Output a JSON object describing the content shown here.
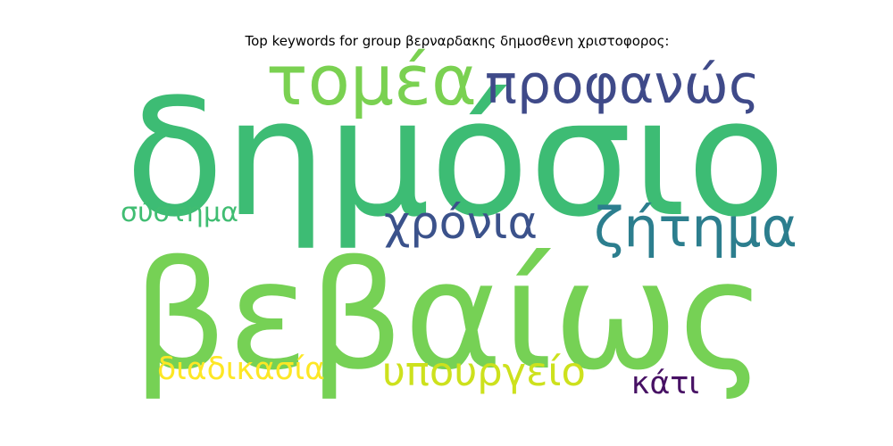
{
  "chart_data": {
    "type": "wordcloud",
    "title": "Top keywords for group βερναρδακης δημοσθενη χριστοφορος:",
    "words": [
      {
        "text": "δημόσιο",
        "weight": 1.0,
        "color": "#3dbc74"
      },
      {
        "text": "βεβαίως",
        "weight": 0.98,
        "color": "#76d155"
      },
      {
        "text": "προφανώς",
        "weight": 0.42,
        "color": "#3f4a89"
      },
      {
        "text": "τομέα",
        "weight": 0.42,
        "color": "#7ad151"
      },
      {
        "text": "ζήτημα",
        "weight": 0.38,
        "color": "#2c7e8e"
      },
      {
        "text": "χρόνια",
        "weight": 0.3,
        "color": "#3b528b"
      },
      {
        "text": "υπουργείο",
        "weight": 0.26,
        "color": "#cde11d"
      },
      {
        "text": "σύστημα",
        "weight": 0.2,
        "color": "#40bd72"
      },
      {
        "text": "διαδικασία",
        "weight": 0.2,
        "color": "#fde725"
      },
      {
        "text": "κάτι",
        "weight": 0.18,
        "color": "#471164"
      }
    ]
  }
}
